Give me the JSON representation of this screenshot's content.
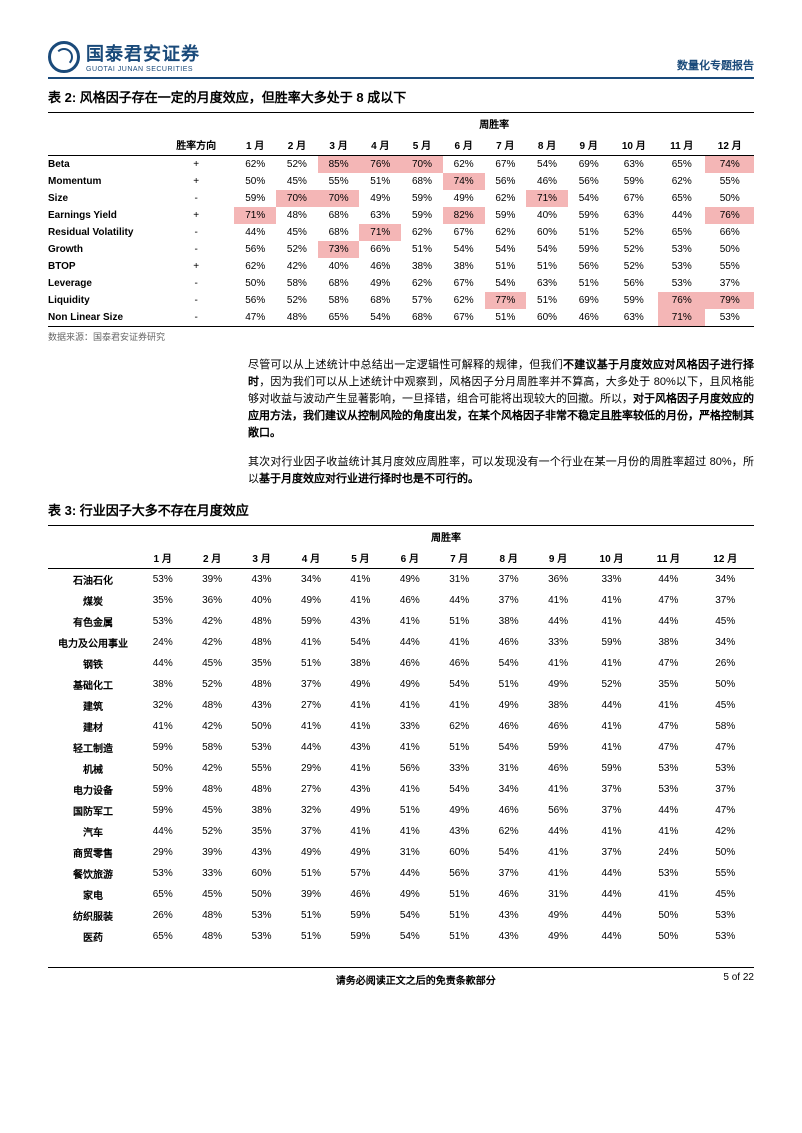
{
  "header": {
    "logo_cn": "国泰君安证券",
    "logo_en": "GUOTAI JUNAN SECURITIES",
    "doc_type": "数量化专题报告"
  },
  "table2": {
    "title": "表 2: 风格因子存在一定的月度效应，但胜率大多处于 8 成以下",
    "super_header": "周胜率",
    "col_direction": "胜率方向",
    "months": [
      "1 月",
      "2 月",
      "3 月",
      "4 月",
      "5 月",
      "6 月",
      "7 月",
      "8 月",
      "9 月",
      "10 月",
      "11 月",
      "12 月"
    ],
    "rows": [
      {
        "name": "Beta",
        "dir": "+",
        "v": [
          "62%",
          "52%",
          "85%",
          "76%",
          "70%",
          "62%",
          "67%",
          "54%",
          "69%",
          "63%",
          "65%",
          "74%"
        ],
        "hl": [
          0,
          0,
          1,
          1,
          1,
          0,
          0,
          0,
          0,
          0,
          0,
          1
        ]
      },
      {
        "name": "Momentum",
        "dir": "+",
        "v": [
          "50%",
          "45%",
          "55%",
          "51%",
          "68%",
          "74%",
          "56%",
          "46%",
          "56%",
          "59%",
          "62%",
          "55%"
        ],
        "hl": [
          0,
          0,
          0,
          0,
          0,
          1,
          0,
          0,
          0,
          0,
          0,
          0
        ]
      },
      {
        "name": "Size",
        "dir": "-",
        "v": [
          "59%",
          "70%",
          "70%",
          "49%",
          "59%",
          "49%",
          "62%",
          "71%",
          "54%",
          "67%",
          "65%",
          "50%"
        ],
        "hl": [
          0,
          1,
          1,
          0,
          0,
          0,
          0,
          1,
          0,
          0,
          0,
          0
        ]
      },
      {
        "name": "Earnings Yield",
        "dir": "+",
        "v": [
          "71%",
          "48%",
          "68%",
          "63%",
          "59%",
          "82%",
          "59%",
          "40%",
          "59%",
          "63%",
          "44%",
          "76%"
        ],
        "hl": [
          1,
          0,
          0,
          0,
          0,
          1,
          0,
          0,
          0,
          0,
          0,
          1
        ]
      },
      {
        "name": "Residual Volatility",
        "dir": "-",
        "v": [
          "44%",
          "45%",
          "68%",
          "71%",
          "62%",
          "67%",
          "62%",
          "60%",
          "51%",
          "52%",
          "65%",
          "66%"
        ],
        "hl": [
          0,
          0,
          0,
          1,
          0,
          0,
          0,
          0,
          0,
          0,
          0,
          0
        ]
      },
      {
        "name": "Growth",
        "dir": "-",
        "v": [
          "56%",
          "52%",
          "73%",
          "66%",
          "51%",
          "54%",
          "54%",
          "54%",
          "59%",
          "52%",
          "53%",
          "50%"
        ],
        "hl": [
          0,
          0,
          1,
          0,
          0,
          0,
          0,
          0,
          0,
          0,
          0,
          0
        ]
      },
      {
        "name": "BTOP",
        "dir": "+",
        "v": [
          "62%",
          "42%",
          "40%",
          "46%",
          "38%",
          "38%",
          "51%",
          "51%",
          "56%",
          "52%",
          "53%",
          "55%"
        ],
        "hl": [
          0,
          0,
          0,
          0,
          0,
          0,
          0,
          0,
          0,
          0,
          0,
          0
        ]
      },
      {
        "name": "Leverage",
        "dir": "-",
        "v": [
          "50%",
          "58%",
          "68%",
          "49%",
          "62%",
          "67%",
          "54%",
          "63%",
          "51%",
          "56%",
          "53%",
          "37%"
        ],
        "hl": [
          0,
          0,
          0,
          0,
          0,
          0,
          0,
          0,
          0,
          0,
          0,
          0
        ]
      },
      {
        "name": "Liquidity",
        "dir": "-",
        "v": [
          "56%",
          "52%",
          "58%",
          "68%",
          "57%",
          "62%",
          "77%",
          "51%",
          "69%",
          "59%",
          "76%",
          "79%"
        ],
        "hl": [
          0,
          0,
          0,
          0,
          0,
          0,
          1,
          0,
          0,
          0,
          1,
          1
        ]
      },
      {
        "name": "Non Linear Size",
        "dir": "-",
        "v": [
          "47%",
          "48%",
          "65%",
          "54%",
          "68%",
          "67%",
          "51%",
          "60%",
          "46%",
          "63%",
          "71%",
          "53%"
        ],
        "hl": [
          0,
          0,
          0,
          0,
          0,
          0,
          0,
          0,
          0,
          0,
          1,
          0
        ]
      }
    ],
    "source": "数据来源：国泰君安证券研究"
  },
  "para1_pre": "尽管可以从上述统计中总结出一定逻辑性可解释的规律，但我们",
  "para1_b1": "不建议基于月度效应对风格因子进行择时",
  "para1_mid": "，因为我们可以从上述统计中观察到，风格因子分月周胜率并不算高，大多处于 80%以下，且风格能够对收益与波动产生显著影响，一旦择错，组合可能将出现较大的回撤。所以，",
  "para1_b2": "对于风格因子月度效应的应用方法，我们建议从控制风险的角度出发，在某个风格因子非常不稳定且胜率较低的月份，严格控制其敞口。",
  "para2_pre": "其次对行业因子收益统计其月度效应周胜率，可以发现没有一个行业在某一月份的周胜率超过 80%，所以",
  "para2_b": "基于月度效应对行业进行择时也是不可行的。",
  "table3": {
    "title": "表 3: 行业因子大多不存在月度效应",
    "super_header": "周胜率",
    "months": [
      "1 月",
      "2 月",
      "3 月",
      "4 月",
      "5 月",
      "6 月",
      "7 月",
      "8 月",
      "9 月",
      "10 月",
      "11 月",
      "12 月"
    ],
    "rows": [
      {
        "name": "石油石化",
        "v": [
          "53%",
          "39%",
          "43%",
          "34%",
          "41%",
          "49%",
          "31%",
          "37%",
          "36%",
          "33%",
          "44%",
          "34%"
        ]
      },
      {
        "name": "煤炭",
        "v": [
          "35%",
          "36%",
          "40%",
          "49%",
          "41%",
          "46%",
          "44%",
          "37%",
          "41%",
          "41%",
          "47%",
          "37%"
        ]
      },
      {
        "name": "有色金属",
        "v": [
          "53%",
          "42%",
          "48%",
          "59%",
          "43%",
          "41%",
          "51%",
          "38%",
          "44%",
          "41%",
          "44%",
          "45%"
        ]
      },
      {
        "name": "电力及公用事业",
        "v": [
          "24%",
          "42%",
          "48%",
          "41%",
          "54%",
          "44%",
          "41%",
          "46%",
          "33%",
          "59%",
          "38%",
          "34%"
        ]
      },
      {
        "name": "钢铁",
        "v": [
          "44%",
          "45%",
          "35%",
          "51%",
          "38%",
          "46%",
          "46%",
          "54%",
          "41%",
          "41%",
          "47%",
          "26%"
        ]
      },
      {
        "name": "基础化工",
        "v": [
          "38%",
          "52%",
          "48%",
          "37%",
          "49%",
          "49%",
          "54%",
          "51%",
          "49%",
          "52%",
          "35%",
          "50%"
        ]
      },
      {
        "name": "建筑",
        "v": [
          "32%",
          "48%",
          "43%",
          "27%",
          "41%",
          "41%",
          "41%",
          "49%",
          "38%",
          "44%",
          "41%",
          "45%"
        ]
      },
      {
        "name": "建材",
        "v": [
          "41%",
          "42%",
          "50%",
          "41%",
          "41%",
          "33%",
          "62%",
          "46%",
          "46%",
          "41%",
          "47%",
          "58%"
        ]
      },
      {
        "name": "轻工制造",
        "v": [
          "59%",
          "58%",
          "53%",
          "44%",
          "43%",
          "41%",
          "51%",
          "54%",
          "59%",
          "41%",
          "47%",
          "47%"
        ]
      },
      {
        "name": "机械",
        "v": [
          "50%",
          "42%",
          "55%",
          "29%",
          "41%",
          "56%",
          "33%",
          "31%",
          "46%",
          "59%",
          "53%",
          "53%"
        ]
      },
      {
        "name": "电力设备",
        "v": [
          "59%",
          "48%",
          "48%",
          "27%",
          "43%",
          "41%",
          "54%",
          "34%",
          "41%",
          "37%",
          "53%",
          "37%"
        ]
      },
      {
        "name": "国防军工",
        "v": [
          "59%",
          "45%",
          "38%",
          "32%",
          "49%",
          "51%",
          "49%",
          "46%",
          "56%",
          "37%",
          "44%",
          "47%"
        ]
      },
      {
        "name": "汽车",
        "v": [
          "44%",
          "52%",
          "35%",
          "37%",
          "41%",
          "41%",
          "43%",
          "62%",
          "44%",
          "41%",
          "41%",
          "42%"
        ]
      },
      {
        "name": "商贸零售",
        "v": [
          "29%",
          "39%",
          "43%",
          "49%",
          "49%",
          "31%",
          "60%",
          "54%",
          "41%",
          "37%",
          "24%",
          "50%"
        ]
      },
      {
        "name": "餐饮旅游",
        "v": [
          "53%",
          "33%",
          "60%",
          "51%",
          "57%",
          "44%",
          "56%",
          "37%",
          "41%",
          "44%",
          "53%",
          "55%"
        ]
      },
      {
        "name": "家电",
        "v": [
          "65%",
          "45%",
          "50%",
          "39%",
          "46%",
          "49%",
          "51%",
          "46%",
          "31%",
          "44%",
          "41%",
          "45%"
        ]
      },
      {
        "name": "纺织服装",
        "v": [
          "26%",
          "48%",
          "53%",
          "51%",
          "59%",
          "54%",
          "51%",
          "43%",
          "49%",
          "44%",
          "50%",
          "53%"
        ]
      },
      {
        "name": "医药",
        "v": [
          "65%",
          "48%",
          "53%",
          "51%",
          "59%",
          "54%",
          "51%",
          "43%",
          "49%",
          "44%",
          "50%",
          "53%"
        ]
      }
    ]
  },
  "footer": {
    "disclaimer": "请务必阅读正文之后的免责条款部分",
    "page": "5 of 22"
  }
}
